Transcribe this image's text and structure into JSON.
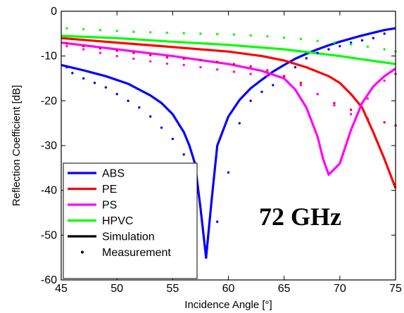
{
  "chart_data": {
    "type": "line",
    "xlabel": "Incidence Angle [°]",
    "ylabel": "Reflection Coefficient [dB]",
    "xlim": [
      45,
      75
    ],
    "ylim": [
      -60,
      0
    ],
    "xticks": [
      45,
      50,
      55,
      60,
      65,
      70,
      75
    ],
    "yticks": [
      0,
      -10,
      -20,
      -30,
      -40,
      -50,
      -60
    ],
    "grid": false,
    "legend_position": "bottom-left",
    "annotation": "72 GHz",
    "series": [
      {
        "name": "ABS",
        "color": "#0000ff",
        "x": [
          45,
          47,
          49,
          51,
          53,
          54,
          55,
          56,
          56.5,
          57,
          57.5,
          58,
          58.5,
          59,
          60,
          61,
          62,
          63,
          64,
          65,
          66,
          67,
          68,
          69,
          70,
          71,
          72,
          73,
          74,
          75
        ],
        "y": [
          -12,
          -13.2,
          -14.5,
          -16.2,
          -18.8,
          -20.5,
          -23,
          -27,
          -30,
          -34,
          -44,
          -55,
          -42,
          -30,
          -23.5,
          -19.8,
          -17.2,
          -15.3,
          -13.5,
          -12,
          -10.6,
          -9.5,
          -8.5,
          -7.6,
          -6.8,
          -6.1,
          -5.4,
          -4.8,
          -4.2,
          -3.8
        ]
      },
      {
        "name": "PE",
        "color": "#ff0000",
        "x": [
          45,
          50,
          55,
          60,
          63,
          65,
          67,
          69,
          70,
          71,
          72,
          73,
          74,
          75
        ],
        "y": [
          -6,
          -7,
          -8,
          -9,
          -10,
          -11,
          -12.5,
          -14.5,
          -16,
          -18.5,
          -21.5,
          -27,
          -33,
          -39.5
        ]
      },
      {
        "name": "PS",
        "color": "#ff00ff",
        "x": [
          45,
          50,
          55,
          60,
          63,
          65,
          66,
          67,
          68,
          68.5,
          69,
          70,
          71,
          72,
          73,
          74,
          75
        ],
        "y": [
          -7,
          -8.5,
          -10,
          -11.8,
          -13.3,
          -15,
          -17.5,
          -21.5,
          -28,
          -33,
          -36.5,
          -34,
          -26.5,
          -20.5,
          -16.8,
          -14.5,
          -12.8
        ]
      },
      {
        "name": "HPVC",
        "color": "#00ff00",
        "x": [
          45,
          50,
          55,
          60,
          65,
          70,
          75
        ],
        "y": [
          -5.5,
          -6,
          -6.8,
          -7.5,
          -8.5,
          -10,
          -11.8
        ]
      }
    ],
    "legend": [
      {
        "label": "ABS",
        "color": "#0000ff",
        "style": "line"
      },
      {
        "label": "PE",
        "color": "#ff0000",
        "style": "line"
      },
      {
        "label": "PS",
        "color": "#ff00ff",
        "style": "line"
      },
      {
        "label": "HPVC",
        "color": "#00ff00",
        "style": "line"
      },
      {
        "label": "Simulation",
        "color": "#000000",
        "style": "line"
      },
      {
        "label": "Measurement",
        "color": "#000000",
        "style": "dot"
      }
    ],
    "measurements": [
      {
        "series": "ABS",
        "color": "#0000ff",
        "x": [
          45.5,
          46,
          47,
          48,
          49,
          50,
          51,
          52,
          53,
          54,
          55,
          56,
          57,
          58,
          59,
          60,
          61,
          62,
          63,
          64,
          65,
          66,
          67,
          68,
          69,
          70,
          71,
          72,
          73,
          74
        ],
        "y": [
          -12.5,
          -13.8,
          -15,
          -16,
          -17,
          -18.5,
          -20,
          -21.5,
          -23.5,
          -26,
          -28.5,
          -32,
          -36,
          -55,
          -47,
          -36,
          -25,
          -20,
          -18,
          -16.5,
          -14.5,
          -12.5,
          -10.5,
          -9.3,
          -8.5,
          -7.8,
          -7,
          -6.5,
          -6,
          -5
        ]
      },
      {
        "series": "PE",
        "color": "#ff0000",
        "x": [
          45.5,
          47,
          48.5,
          50,
          51.5,
          53,
          54.5,
          56,
          57.5,
          59,
          60.5,
          62,
          63.5,
          65,
          66.5,
          68,
          69.5,
          71,
          72.5,
          74,
          75
        ],
        "y": [
          -7.2,
          -7.8,
          -8.3,
          -8.8,
          -9.3,
          -9.8,
          -10.3,
          -10.6,
          -10.9,
          -11.3,
          -11.8,
          -12.3,
          -13.2,
          -14.5,
          -16,
          -18.5,
          -20.5,
          -22,
          -24,
          -24.8,
          -25.5
        ]
      },
      {
        "series": "PS",
        "color": "#ff00ff",
        "x": [
          45.5,
          47,
          48.5,
          50,
          51.5,
          53,
          54.5,
          56,
          57.5,
          59,
          60.5,
          62,
          63.5,
          65,
          66.5,
          68,
          69.5,
          71,
          72.5,
          74,
          75
        ],
        "y": [
          -7.8,
          -8.5,
          -9.3,
          -10,
          -10.6,
          -11.2,
          -11.7,
          -12,
          -12.5,
          -13,
          -13.5,
          -14,
          -14.5,
          -15,
          -16.5,
          -18.5,
          -21,
          -23,
          -19.5,
          -15.5,
          -14
        ]
      },
      {
        "series": "HPVC",
        "color": "#00ff00",
        "x": [
          45.5,
          47,
          48.5,
          50,
          51.5,
          53,
          54.5,
          56,
          57.5,
          59,
          60.5,
          62,
          63.5,
          65,
          66.5,
          68,
          69.5,
          71,
          72.5,
          74,
          75
        ],
        "y": [
          -3.8,
          -4,
          -4.2,
          -4.4,
          -4.6,
          -4.7,
          -4.8,
          -4.9,
          -5,
          -5.1,
          -5.2,
          -5.4,
          -5.6,
          -5.9,
          -6.2,
          -6.6,
          -7,
          -7.4,
          -7.9,
          -8.5,
          -9
        ]
      }
    ]
  }
}
